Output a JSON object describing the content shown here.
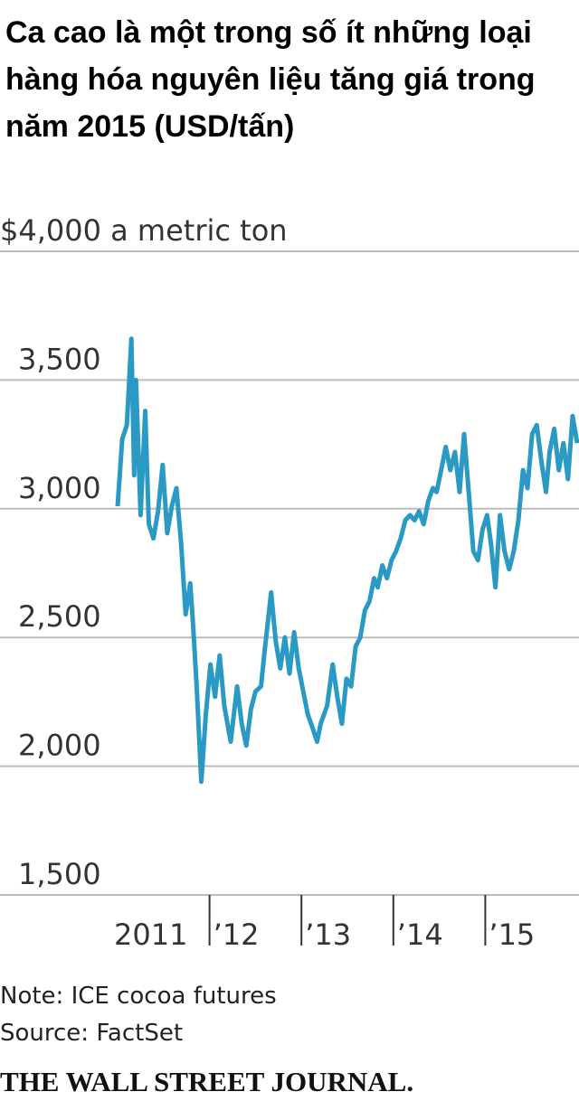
{
  "chart_data": {
    "type": "line",
    "title": "Ca cao là một trong số ít những loại hàng hóa nguyên liệu tăng giá trong năm 2015 (USD/tấn)",
    "note": "Note: ICE cocoa futures",
    "source": "Source: FactSet",
    "credit": "THE WALL STREET JOURNAL.",
    "xlim": [
      2011,
      2016
    ],
    "xticks": [
      {
        "value": 2011,
        "label": "2011"
      },
      {
        "value": 2012,
        "label": "’12"
      },
      {
        "value": 2013,
        "label": "’13"
      },
      {
        "value": 2014,
        "label": "’14"
      },
      {
        "value": 2015,
        "label": "’15"
      }
    ],
    "ylim": [
      1500,
      4000
    ],
    "yticks": [
      {
        "value": 1500,
        "label": "1,500"
      },
      {
        "value": 2000,
        "label": "2,000"
      },
      {
        "value": 2500,
        "label": "2,500"
      },
      {
        "value": 3000,
        "label": "3,000"
      },
      {
        "value": 3500,
        "label": "3,500"
      },
      {
        "value": 4000,
        "label": "$4,000 a metric ton"
      }
    ],
    "grid": true,
    "x": [
      2011.0,
      2011.05,
      2011.1,
      2011.15,
      2011.18,
      2011.2,
      2011.25,
      2011.3,
      2011.34,
      2011.39,
      2011.44,
      2011.49,
      2011.54,
      2011.59,
      2011.64,
      2011.69,
      2011.74,
      2011.79,
      2011.82,
      2011.86,
      2011.91,
      2011.96,
      2012.01,
      2012.06,
      2012.11,
      2012.16,
      2012.23,
      2012.3,
      2012.35,
      2012.4,
      2012.45,
      2012.5,
      2012.56,
      2012.6,
      2012.67,
      2012.72,
      2012.77,
      2012.82,
      2012.87,
      2012.92,
      2012.97,
      2013.02,
      2013.07,
      2013.12,
      2013.17,
      2013.21,
      2013.28,
      2013.34,
      2013.39,
      2013.44,
      2013.49,
      2013.54,
      2013.59,
      2013.64,
      2013.69,
      2013.74,
      2013.79,
      2013.83,
      2013.88,
      2013.93,
      2013.98,
      2014.03,
      2014.08,
      2014.13,
      2014.18,
      2014.23,
      2014.28,
      2014.33,
      2014.38,
      2014.43,
      2014.47,
      2014.52,
      2014.57,
      2014.62,
      2014.67,
      2014.72,
      2014.77,
      2014.82,
      2014.87,
      2014.92,
      2014.97,
      2015.02,
      2015.06,
      2015.11,
      2015.16,
      2015.21,
      2015.26,
      2015.31,
      2015.36,
      2015.41,
      2015.46,
      2015.51,
      2015.56,
      2015.61,
      2015.66,
      2015.7,
      2015.75,
      2015.8,
      2015.85,
      2015.9,
      2015.95,
      2016.0
    ],
    "series": [
      {
        "color": "#2a9ac4",
        "values": [
          3010,
          3270,
          3325,
          3660,
          3130,
          3500,
          2975,
          3380,
          2940,
          2885,
          2990,
          3170,
          2905,
          3010,
          3080,
          2870,
          2590,
          2710,
          2555,
          2310,
          1940,
          2200,
          2395,
          2270,
          2430,
          2235,
          2095,
          2310,
          2165,
          2080,
          2220,
          2290,
          2310,
          2450,
          2675,
          2485,
          2380,
          2500,
          2360,
          2520,
          2380,
          2290,
          2200,
          2150,
          2095,
          2165,
          2235,
          2395,
          2270,
          2165,
          2340,
          2310,
          2465,
          2500,
          2605,
          2640,
          2730,
          2695,
          2780,
          2730,
          2800,
          2835,
          2885,
          2955,
          2975,
          2955,
          2990,
          2940,
          3030,
          3080,
          3065,
          3150,
          3240,
          3150,
          3220,
          3065,
          3290,
          3065,
          2835,
          2800,
          2920,
          2975,
          2870,
          2695,
          2975,
          2835,
          2765,
          2835,
          2955,
          3150,
          3080,
          3290,
          3325,
          3185,
          3065,
          3220,
          3310,
          3150,
          3255,
          3115,
          3360,
          3255
        ]
      }
    ]
  }
}
